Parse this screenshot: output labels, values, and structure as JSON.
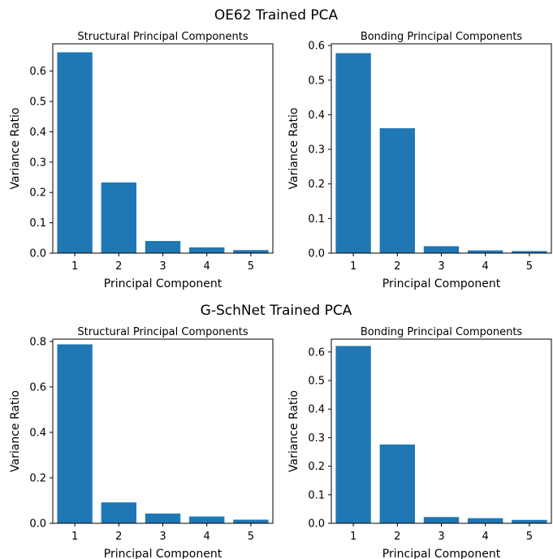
{
  "figure": {
    "sections": [
      {
        "title": "OE62 Trained PCA",
        "charts": [
          {
            "title": "Structural Principal Components",
            "xlabel": "Principal Component",
            "ylabel": "Variance Ratio",
            "categories": [
              "1",
              "2",
              "3",
              "4",
              "5"
            ],
            "ylim": [
              0,
              0.69
            ],
            "yticks": [
              "0.0",
              "0.1",
              "0.2",
              "0.3",
              "0.4",
              "0.5",
              "0.6"
            ]
          },
          {
            "title": "Bonding Principal Components",
            "xlabel": "Principal Component",
            "ylabel": "Variance Ratio",
            "categories": [
              "1",
              "2",
              "3",
              "4",
              "5"
            ],
            "ylim": [
              0,
              0.605
            ],
            "yticks": [
              "0.0",
              "0.1",
              "0.2",
              "0.3",
              "0.4",
              "0.5",
              "0.6"
            ]
          }
        ]
      },
      {
        "title": "G-SchNet Trained PCA",
        "charts": [
          {
            "title": "Structural Principal Components",
            "xlabel": "Principal Component",
            "ylabel": "Variance Ratio",
            "categories": [
              "1",
              "2",
              "3",
              "4",
              "5"
            ],
            "ylim": [
              0,
              0.81
            ],
            "yticks": [
              "0.0",
              "0.2",
              "0.4",
              "0.6",
              "0.8"
            ]
          },
          {
            "title": "Bonding Principal Components",
            "xlabel": "Principal Component",
            "ylabel": "Variance Ratio",
            "categories": [
              "1",
              "2",
              "3",
              "4",
              "5"
            ],
            "ylim": [
              0,
              0.645
            ],
            "yticks": [
              "0.0",
              "0.1",
              "0.2",
              "0.3",
              "0.4",
              "0.5",
              "0.6"
            ]
          }
        ]
      }
    ],
    "bar_color": "#1f77b4"
  },
  "chart_data": [
    {
      "type": "bar",
      "title": "Structural Principal Components",
      "xlabel": "Principal Component",
      "ylabel": "Variance Ratio",
      "categories": [
        "1",
        "2",
        "3",
        "4",
        "5"
      ],
      "values": [
        0.662,
        0.233,
        0.04,
        0.019,
        0.01
      ],
      "ylim": [
        0,
        0.69
      ]
    },
    {
      "type": "bar",
      "title": "Bonding Principal Components",
      "xlabel": "Principal Component",
      "ylabel": "Variance Ratio",
      "categories": [
        "1",
        "2",
        "3",
        "4",
        "5"
      ],
      "values": [
        0.578,
        0.361,
        0.02,
        0.008,
        0.006
      ],
      "ylim": [
        0,
        0.605
      ]
    },
    {
      "type": "bar",
      "title": "Structural Principal Components",
      "xlabel": "Principal Component",
      "ylabel": "Variance Ratio",
      "categories": [
        "1",
        "2",
        "3",
        "4",
        "5"
      ],
      "values": [
        0.787,
        0.092,
        0.043,
        0.03,
        0.016
      ],
      "ylim": [
        0,
        0.81
      ]
    },
    {
      "type": "bar",
      "title": "Bonding Principal Components",
      "xlabel": "Principal Component",
      "ylabel": "Variance Ratio",
      "categories": [
        "1",
        "2",
        "3",
        "4",
        "5"
      ],
      "values": [
        0.621,
        0.276,
        0.022,
        0.018,
        0.012
      ],
      "ylim": [
        0,
        0.645
      ]
    }
  ]
}
